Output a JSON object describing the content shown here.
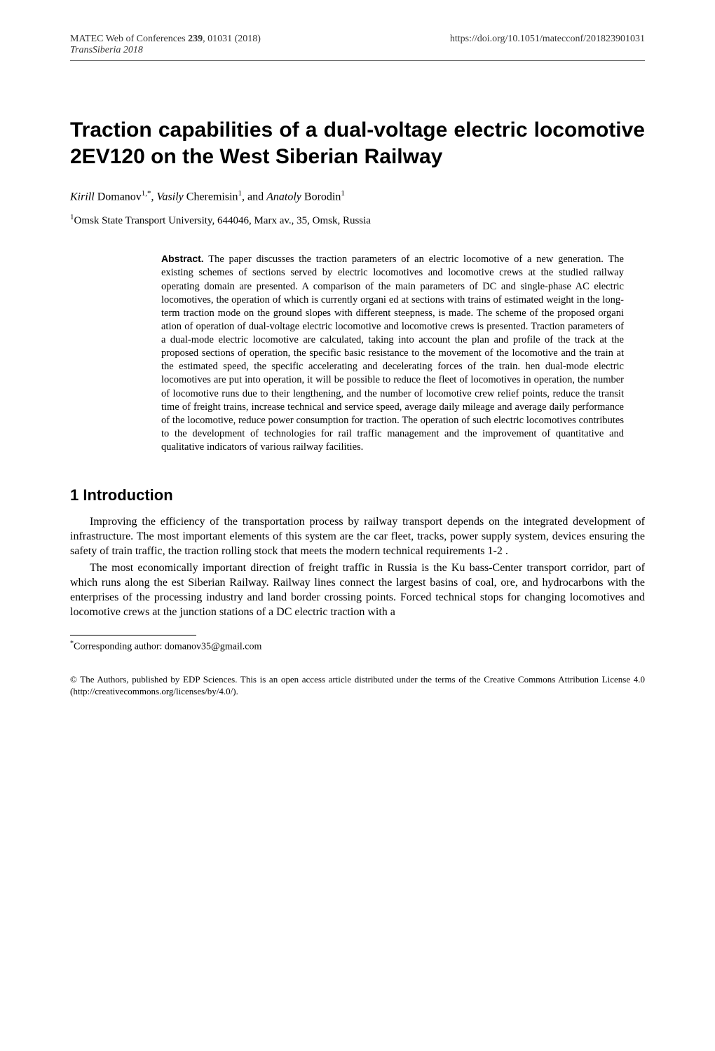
{
  "header": {
    "journal": "MATEC Web of Conferences",
    "volume": "239",
    "article_num": ", 01031 (2018)",
    "subtitle": "TransSiberia 2018",
    "doi": "https://doi.org/10.1051/matecconf/201823901031"
  },
  "title": "Traction capabilities of a dual-voltage electric locomotive 2EV120 on the West Siberian Railway",
  "authors": {
    "a1_first": "Kirill",
    "a1_last": " Domanov",
    "a1_sup": "1,*",
    "sep1": ", ",
    "a2_first": "Vasily",
    "a2_last": " Cheremisin",
    "a2_sup": "1",
    "sep2": ", and ",
    "a3_first": "Anatoly",
    "a3_last": " Borodin",
    "a3_sup": "1"
  },
  "affiliation": {
    "sup": "1",
    "text": "Omsk State Transport University, 644046, Marx av., 35, Omsk, Russia"
  },
  "abstract": {
    "label": "Abstract.",
    "text": " The paper discusses the traction parameters of an electric locomotive of a new generation. The existing schemes of sections served by electric locomotives and locomotive crews at the studied railway operating domain are presented. A comparison of the main parameters of DC and single-phase AC electric locomotives, the operation of which is currently organi ed at sections with trains of estimated weight in the long-term traction mode on the ground slopes with different steepness, is made. The scheme of the proposed organi ation of operation of dual-voltage electric locomotive and locomotive crews is presented. Traction parameters of a dual-mode electric locomotive are calculated, taking into account the plan and profile of the track at the proposed sections of operation, the specific basic resistance to the movement of the locomotive and the train at the estimated speed, the specific accelerating and decelerating forces of the train.  hen dual-mode electric locomotives are put into operation, it will be possible to reduce the fleet of locomotives in operation, the number of locomotive runs due to their lengthening, and the number of locomotive crew relief points, reduce the transit time of freight trains, increase technical and service speed, average daily mileage and average daily performance of the locomotive, reduce power consumption for traction. The operation of such electric locomotives contributes to the development of technologies for rail traffic management and the improvement of quantitative and qualitative indicators of various railway facilities."
  },
  "section1": {
    "heading": "1 Introduction",
    "para1": "Improving the efficiency of the transportation process by railway transport depends on the integrated development of infrastructure. The most important elements of this system are the car fleet, tracks, power supply system, devices ensuring the safety of train traffic, the traction rolling stock that meets the modern technical requirements  1-2 .",
    "para2": "The most economically important direction of freight traffic in Russia is the Ku bass-Center transport corridor, part of which runs along the   est Siberian Railway. Railway lines connect the largest basins of coal, ore, and hydrocarbons with the enterprises of the processing industry and land border crossing points. Forced technical stops for changing locomotives and locomotive crews at the junction stations of a DC electric traction with a"
  },
  "footnote": {
    "sup": "*",
    "text": "Corresponding author: domanov35@gmail.com"
  },
  "copyright": "© The Authors, published by EDP Sciences. This is an open access article distributed under the terms of the Creative Commons Attribution License 4.0 (http://creativecommons.org/licenses/by/4.0/)."
}
